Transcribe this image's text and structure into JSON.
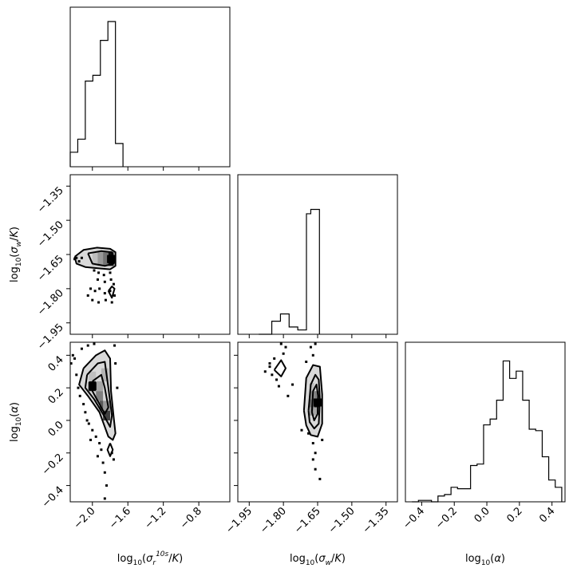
{
  "chart_data": {
    "type": "corner",
    "parameters": [
      {
        "key": "s",
        "label": "log10(σ_r^10s / K)",
        "range": [
          -2.25,
          -0.45
        ],
        "ticks": [
          {
            "v": -2.0,
            "t": "−2.0"
          },
          {
            "v": -1.6,
            "t": "−1.6"
          },
          {
            "v": -1.2,
            "t": "−1.2"
          },
          {
            "v": -0.8,
            "t": "−0.8"
          }
        ]
      },
      {
        "key": "w",
        "label": "log10(σ_w / K)",
        "range": [
          -2.0,
          -1.3
        ],
        "ticks": [
          {
            "v": -1.95,
            "t": "−1.95"
          },
          {
            "v": -1.8,
            "t": "−1.80"
          },
          {
            "v": -1.65,
            "t": "−1.65"
          },
          {
            "v": -1.5,
            "t": "−1.50"
          },
          {
            "v": -1.35,
            "t": "−1.35"
          }
        ]
      },
      {
        "key": "a",
        "label": "log10(α)",
        "range": [
          -0.5,
          0.48
        ],
        "ticks": [
          {
            "v": -0.4,
            "t": "−0.4"
          },
          {
            "v": -0.2,
            "t": "−0.2"
          },
          {
            "v": 0.0,
            "t": "0.0"
          },
          {
            "v": 0.2,
            "t": "0.2"
          },
          {
            "v": 0.4,
            "t": "0.4"
          }
        ]
      }
    ],
    "histograms": {
      "s": {
        "edges": [
          -2.25,
          -2.165,
          -2.08,
          -1.995,
          -1.91,
          -1.825,
          -1.74,
          -1.655
        ],
        "counts": [
          0.1,
          0.19,
          0.59,
          0.63,
          0.87,
          1.0,
          0.16
        ]
      },
      "w": {
        "edges": [
          -1.908,
          -1.889,
          -1.87,
          -1.851,
          -1.832,
          -1.813,
          -1.794,
          -1.775,
          -1.756,
          -1.737,
          -1.718,
          -1.699,
          -1.68,
          -1.661,
          -1.642
        ],
        "counts": [
          0,
          0,
          0,
          0.09,
          0.09,
          0.14,
          0.14,
          0.05,
          0.05,
          0.03,
          0.03,
          0.83,
          0.86,
          0.86
        ]
      },
      "a": {
        "edges": [
          -0.46,
          -0.42,
          -0.38,
          -0.34,
          -0.3,
          -0.26,
          -0.22,
          -0.18,
          -0.14,
          -0.1,
          -0.06,
          -0.02,
          0.02,
          0.06,
          0.1,
          0.14,
          0.18,
          0.22,
          0.26,
          0.3,
          0.34,
          0.38,
          0.42,
          0.46
        ],
        "counts": [
          0,
          0.01,
          0.01,
          0,
          0.04,
          0.05,
          0.1,
          0.09,
          0.09,
          0.25,
          0.26,
          0.53,
          0.57,
          0.7,
          0.97,
          0.85,
          0.9,
          0.7,
          0.5,
          0.49,
          0.31,
          0.15,
          0.1
        ]
      }
    },
    "densities": {
      "w_vs_s": {
        "mode": [
          -1.79,
          -1.67
        ],
        "contours": [
          [
            [
              -2.2,
              -1.66
            ],
            [
              -2.1,
              -1.63
            ],
            [
              -1.95,
              -1.62
            ],
            [
              -1.8,
              -1.625
            ],
            [
              -1.74,
              -1.64
            ],
            [
              -1.74,
              -1.7
            ],
            [
              -1.8,
              -1.715
            ],
            [
              -1.95,
              -1.71
            ],
            [
              -2.08,
              -1.705
            ],
            [
              -2.18,
              -1.69
            ],
            [
              -2.2,
              -1.66
            ]
          ],
          [
            [
              -2.05,
              -1.645
            ],
            [
              -1.9,
              -1.635
            ],
            [
              -1.78,
              -1.64
            ],
            [
              -1.76,
              -1.69
            ],
            [
              -1.86,
              -1.7
            ],
            [
              -2.0,
              -1.69
            ],
            [
              -2.05,
              -1.645
            ]
          ],
          [
            [
              -1.82,
              -1.655
            ],
            [
              -1.76,
              -1.655
            ],
            [
              -1.76,
              -1.685
            ],
            [
              -1.82,
              -1.685
            ],
            [
              -1.82,
              -1.655
            ]
          ],
          [
            [
              -1.82,
              -1.81
            ],
            [
              -1.78,
              -1.79
            ],
            [
              -1.75,
              -1.8
            ],
            [
              -1.78,
              -1.84
            ],
            [
              -1.82,
              -1.81
            ]
          ]
        ],
        "cells": [
          {
            "x": [
              -2.0,
              -1.94
            ],
            "y": [
              -1.7,
              -1.64
            ],
            "d": 0.25
          },
          {
            "x": [
              -1.94,
              -1.88
            ],
            "y": [
              -1.7,
              -1.64
            ],
            "d": 0.4
          },
          {
            "x": [
              -1.88,
              -1.82
            ],
            "y": [
              -1.7,
              -1.64
            ],
            "d": 0.55
          },
          {
            "x": [
              -1.82,
              -1.76
            ],
            "y": [
              -1.7,
              -1.64
            ],
            "d": 0.95
          }
        ],
        "points": [
          [
            -2.2,
            -1.67
          ],
          [
            -2.18,
            -1.665
          ],
          [
            -2.15,
            -1.68
          ],
          [
            -2.12,
            -1.665
          ],
          [
            -1.98,
            -1.72
          ],
          [
            -1.93,
            -1.73
          ],
          [
            -1.87,
            -1.74
          ],
          [
            -1.8,
            -1.73
          ],
          [
            -1.94,
            -1.76
          ],
          [
            -1.86,
            -1.77
          ],
          [
            -1.79,
            -1.76
          ],
          [
            -2.02,
            -1.8
          ],
          [
            -1.97,
            -1.81
          ],
          [
            -1.92,
            -1.8
          ],
          [
            -1.86,
            -1.82
          ],
          [
            -1.8,
            -1.81
          ],
          [
            -1.75,
            -1.83
          ],
          [
            -2.0,
            -1.85
          ],
          [
            -1.93,
            -1.86
          ],
          [
            -1.85,
            -1.85
          ],
          [
            -1.78,
            -1.86
          ],
          [
            -2.05,
            -1.83
          ],
          [
            -1.76,
            -1.78
          ]
        ]
      },
      "a_vs_s": {
        "mode": [
          -2.0,
          0.21
        ],
        "contours": [
          [
            [
              -2.1,
              0.32
            ],
            [
              -1.96,
              0.4
            ],
            [
              -1.86,
              0.43
            ],
            [
              -1.8,
              0.38
            ],
            [
              -1.79,
              0.18
            ],
            [
              -1.76,
              0.02
            ],
            [
              -1.74,
              -0.08
            ],
            [
              -1.77,
              -0.12
            ],
            [
              -1.82,
              -0.1
            ],
            [
              -1.92,
              0.05
            ],
            [
              -2.05,
              0.15
            ],
            [
              -2.15,
              0.22
            ],
            [
              -2.1,
              0.32
            ]
          ],
          [
            [
              -2.06,
              0.28
            ],
            [
              -1.94,
              0.35
            ],
            [
              -1.86,
              0.36
            ],
            [
              -1.82,
              0.2
            ],
            [
              -1.78,
              0.03
            ],
            [
              -1.8,
              -0.04
            ],
            [
              -1.86,
              0.02
            ],
            [
              -1.98,
              0.13
            ],
            [
              -2.08,
              0.2
            ],
            [
              -2.06,
              0.28
            ]
          ],
          [
            [
              -2.0,
              0.24
            ],
            [
              -1.9,
              0.28
            ],
            [
              -1.86,
              0.2
            ],
            [
              -1.82,
              0.08
            ],
            [
              -1.86,
              0.04
            ],
            [
              -1.94,
              0.12
            ],
            [
              -2.0,
              0.18
            ],
            [
              -2.0,
              0.24
            ]
          ],
          [
            [
              -1.8,
              -0.14
            ],
            [
              -1.77,
              -0.18
            ],
            [
              -1.8,
              -0.22
            ],
            [
              -1.83,
              -0.18
            ],
            [
              -1.8,
              -0.14
            ]
          ]
        ],
        "cells": [
          {
            "x": [
              -2.04,
              -1.96
            ],
            "y": [
              0.18,
              0.24
            ],
            "d": 0.95
          },
          {
            "x": [
              -1.96,
              -1.88
            ],
            "y": [
              0.18,
              0.24
            ],
            "d": 0.35
          },
          {
            "x": [
              -1.96,
              -1.88
            ],
            "y": [
              0.12,
              0.18
            ],
            "d": 0.5
          },
          {
            "x": [
              -1.92,
              -1.84
            ],
            "y": [
              0.06,
              0.12
            ],
            "d": 0.65
          },
          {
            "x": [
              -1.88,
              -1.8
            ],
            "y": [
              0.0,
              0.06
            ],
            "d": 0.75
          },
          {
            "x": [
              -1.88,
              -1.8
            ],
            "y": [
              0.06,
              0.12
            ],
            "d": 0.4
          },
          {
            "x": [
              -2.04,
              -1.96
            ],
            "y": [
              0.24,
              0.3
            ],
            "d": 0.25
          },
          {
            "x": [
              -1.9,
              -1.82
            ],
            "y": [
              0.24,
              0.32
            ],
            "d": 0.3
          }
        ],
        "points": [
          [
            -2.22,
            0.4
          ],
          [
            -2.2,
            0.38
          ],
          [
            -2.24,
            0.35
          ],
          [
            -2.12,
            0.44
          ],
          [
            -2.05,
            0.46
          ],
          [
            -1.98,
            0.47
          ],
          [
            -2.18,
            0.28
          ],
          [
            -2.16,
            0.2
          ],
          [
            -2.14,
            0.15
          ],
          [
            -2.1,
            0.1
          ],
          [
            -2.08,
            0.05
          ],
          [
            -2.04,
            -0.02
          ],
          [
            -2.0,
            -0.06
          ],
          [
            -1.96,
            -0.1
          ],
          [
            -1.92,
            -0.14
          ],
          [
            -1.9,
            -0.18
          ],
          [
            -1.94,
            -0.22
          ],
          [
            -1.88,
            -0.26
          ],
          [
            -1.86,
            -0.32
          ],
          [
            -1.84,
            -0.4
          ],
          [
            -1.86,
            -0.48
          ],
          [
            -1.75,
            0.46
          ],
          [
            -1.74,
            0.35
          ],
          [
            -1.72,
            0.2
          ],
          [
            -1.78,
            -0.2
          ],
          [
            -1.76,
            -0.24
          ],
          [
            -2.02,
            -0.12
          ],
          [
            -2.06,
            0.0
          ]
        ]
      },
      "a_vs_w": {
        "mode": [
          -1.65,
          0.11
        ],
        "contours": [
          [
            [
              -1.71,
              0.06
            ],
            [
              -1.7,
              0.26
            ],
            [
              -1.67,
              0.34
            ],
            [
              -1.64,
              0.33
            ],
            [
              -1.63,
              0.16
            ],
            [
              -1.63,
              -0.02
            ],
            [
              -1.65,
              -0.1
            ],
            [
              -1.68,
              -0.09
            ],
            [
              -1.7,
              -0.03
            ],
            [
              -1.71,
              0.06
            ]
          ],
          [
            [
              -1.69,
              0.06
            ],
            [
              -1.68,
              0.22
            ],
            [
              -1.66,
              0.28
            ],
            [
              -1.645,
              0.25
            ],
            [
              -1.64,
              0.12
            ],
            [
              -1.645,
              -0.02
            ],
            [
              -1.665,
              -0.05
            ],
            [
              -1.685,
              -0.01
            ],
            [
              -1.69,
              0.06
            ]
          ],
          [
            [
              -1.675,
              0.05
            ],
            [
              -1.67,
              0.18
            ],
            [
              -1.655,
              0.22
            ],
            [
              -1.648,
              0.15
            ],
            [
              -1.65,
              0.04
            ],
            [
              -1.665,
              0.0
            ],
            [
              -1.675,
              0.05
            ]
          ],
          [
            [
              -1.84,
              0.31
            ],
            [
              -1.81,
              0.37
            ],
            [
              -1.79,
              0.32
            ],
            [
              -1.81,
              0.27
            ],
            [
              -1.84,
              0.31
            ]
          ]
        ],
        "cells": [
          {
            "x": [
              -1.665,
              -1.645
            ],
            "y": [
              0.08,
              0.13
            ],
            "d": 0.95
          },
          {
            "x": [
              -1.685,
              -1.665
            ],
            "y": [
              0.08,
              0.13
            ],
            "d": 0.55
          },
          {
            "x": [
              -1.685,
              -1.665
            ],
            "y": [
              0.13,
              0.18
            ],
            "d": 0.45
          },
          {
            "x": [
              -1.685,
              -1.665
            ],
            "y": [
              0.03,
              0.08
            ],
            "d": 0.4
          },
          {
            "x": [
              -1.665,
              -1.645
            ],
            "y": [
              0.13,
              0.18
            ],
            "d": 0.5
          },
          {
            "x": [
              -1.665,
              -1.645
            ],
            "y": [
              0.03,
              0.08
            ],
            "d": 0.35
          },
          {
            "x": [
              -1.685,
              -1.665
            ],
            "y": [
              0.18,
              0.23
            ],
            "d": 0.25
          }
        ],
        "points": [
          [
            -1.86,
            0.33
          ],
          [
            -1.85,
            0.28
          ],
          [
            -1.83,
            0.25
          ],
          [
            -1.82,
            0.21
          ],
          [
            -1.84,
            0.38
          ],
          [
            -1.8,
            0.41
          ],
          [
            -1.79,
            0.45
          ],
          [
            -1.81,
            0.47
          ],
          [
            -1.68,
            0.45
          ],
          [
            -1.67,
            0.4
          ],
          [
            -1.66,
            0.47
          ],
          [
            -1.7,
            0.36
          ],
          [
            -1.69,
            -0.08
          ],
          [
            -1.67,
            -0.14
          ],
          [
            -1.66,
            -0.2
          ],
          [
            -1.67,
            -0.24
          ],
          [
            -1.66,
            -0.3
          ],
          [
            -1.64,
            -0.36
          ],
          [
            -1.63,
            -0.12
          ],
          [
            -1.72,
            -0.06
          ],
          [
            -1.78,
            0.15
          ],
          [
            -1.76,
            0.22
          ],
          [
            -1.86,
            0.35
          ],
          [
            -1.88,
            0.3
          ]
        ]
      }
    }
  }
}
